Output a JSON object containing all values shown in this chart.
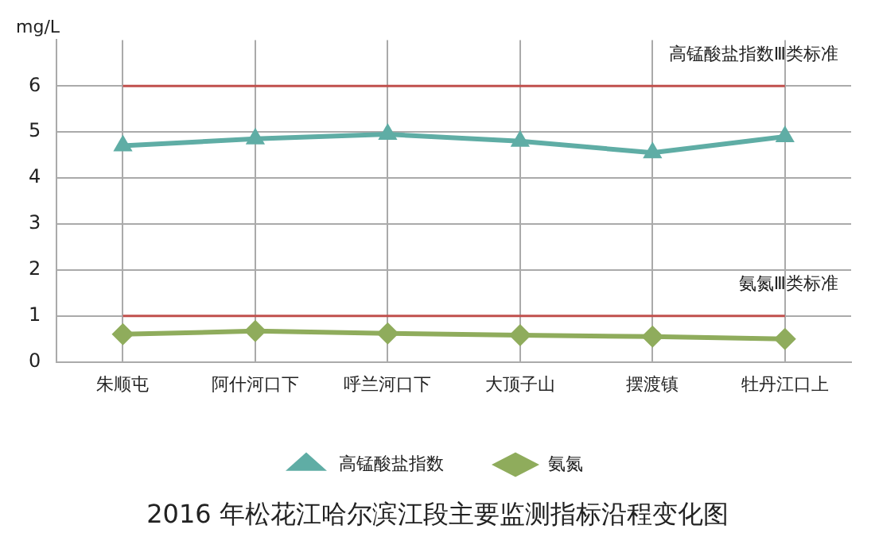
{
  "chart_data": {
    "type": "line",
    "title": "2016 年松花江哈尔滨江段主要监测指标沿程变化图",
    "ylabel": "mg/L",
    "categories": [
      "朱顺屯",
      "阿什河口下",
      "呼兰河口下",
      "大顶子山",
      "摆渡镇",
      "牡丹江口上"
    ],
    "series": [
      {
        "name": "高锰酸盐指数",
        "color": "#5fada5",
        "marker": "triangle",
        "values": [
          4.7,
          4.85,
          4.95,
          4.8,
          4.55,
          4.9
        ]
      },
      {
        "name": "氨氮",
        "color": "#8fac5c",
        "marker": "diamond",
        "values": [
          0.6,
          0.67,
          0.62,
          0.58,
          0.55,
          0.5
        ]
      }
    ],
    "ylim": [
      0,
      7
    ],
    "yticks": [
      0,
      1,
      2,
      3,
      4,
      5,
      6
    ],
    "ref_lines": [
      {
        "axis": "y",
        "value": 6,
        "label": "高锰酸盐指数Ⅲ类标准",
        "color": "#c0504d"
      },
      {
        "axis": "y",
        "value": 1,
        "label": "氨氮Ⅲ类标准",
        "color": "#c0504d"
      }
    ],
    "grid": true,
    "legend": "bottom",
    "line_style": "solid"
  }
}
